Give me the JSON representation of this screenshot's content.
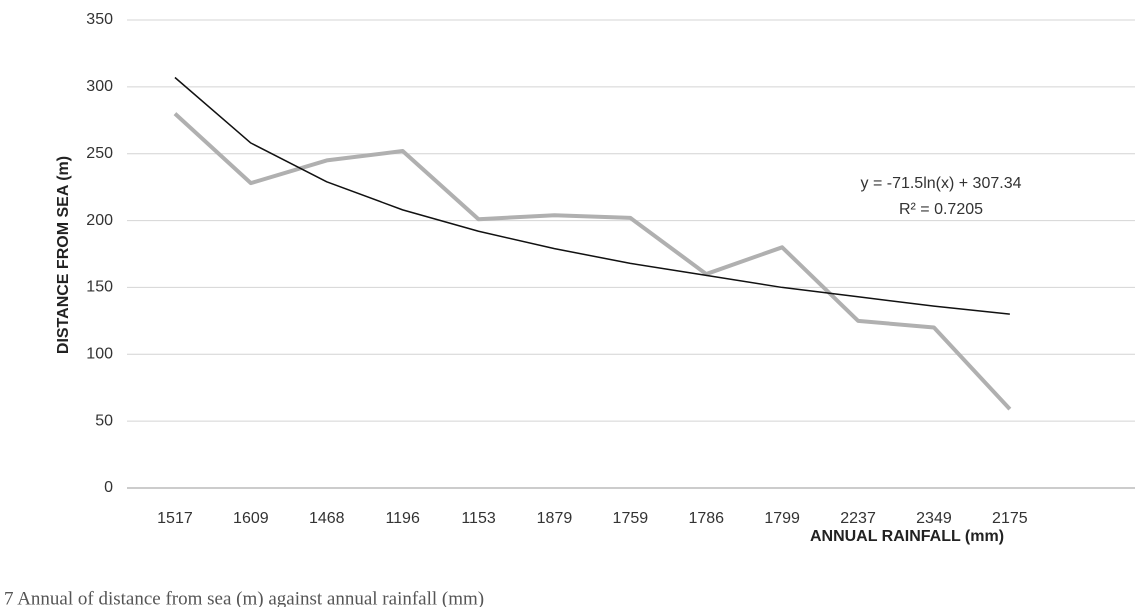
{
  "chart_data": {
    "type": "line",
    "x_label": "ANNUAL RAINFALL (mm)",
    "y_label": "DISTANCE FROM SEA (m)",
    "categories": [
      "1517",
      "1609",
      "1468",
      "1196",
      "1153",
      "1879",
      "1759",
      "1786",
      "1799",
      "2237",
      "2349",
      "2175"
    ],
    "series": [
      {
        "color": "#b0b0b0",
        "values": [
          280,
          228,
          245,
          252,
          201,
          204,
          202,
          160,
          180,
          125,
          120,
          59
        ]
      }
    ],
    "trendline": {
      "color": "#111111",
      "values": [
        307,
        258,
        229,
        208,
        192,
        179,
        168,
        159,
        150,
        143,
        136,
        130
      ],
      "equation": "y = -71.5ln(x) + 307.34",
      "r_squared": "R² = 0.7205"
    },
    "ylim": [
      0,
      350
    ],
    "yticks": [
      0,
      50,
      100,
      150,
      200,
      250,
      300,
      350
    ],
    "grid": true,
    "caption": "7 Annual of distance from sea (m) against annual rainfall (mm)"
  }
}
